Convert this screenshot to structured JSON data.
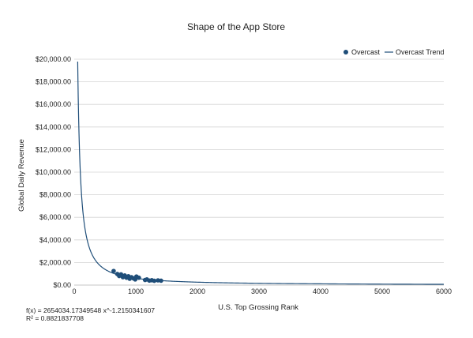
{
  "chart_data": {
    "type": "scatter",
    "title": "Shape of the App Store",
    "xlabel": "U.S. Top Grossing Rank",
    "ylabel": "Global Daily Revenue",
    "xlim": [
      0,
      6000
    ],
    "ylim": [
      0,
      20000
    ],
    "x_ticks": [
      "0",
      "1000",
      "2000",
      "3000",
      "4000",
      "5000",
      "6000"
    ],
    "y_ticks": [
      "$0.00",
      "$2,000.00",
      "$4,000.00",
      "$6,000.00",
      "$8,000.00",
      "$10,000.00",
      "$12,000.00",
      "$14,000.00",
      "$16,000.00",
      "$18,000.00",
      "$20,000.00"
    ],
    "grid": "horizontal",
    "legend_position": "top-right",
    "series": [
      {
        "name": "Overcast",
        "color": "#1f4e79",
        "points": [
          {
            "x": 640,
            "y": 1250
          },
          {
            "x": 700,
            "y": 980
          },
          {
            "x": 730,
            "y": 800
          },
          {
            "x": 760,
            "y": 950
          },
          {
            "x": 790,
            "y": 700
          },
          {
            "x": 820,
            "y": 850
          },
          {
            "x": 850,
            "y": 650
          },
          {
            "x": 880,
            "y": 780
          },
          {
            "x": 900,
            "y": 560
          },
          {
            "x": 930,
            "y": 700
          },
          {
            "x": 960,
            "y": 600
          },
          {
            "x": 990,
            "y": 500
          },
          {
            "x": 1010,
            "y": 760
          },
          {
            "x": 1050,
            "y": 650
          },
          {
            "x": 1150,
            "y": 450
          },
          {
            "x": 1180,
            "y": 500
          },
          {
            "x": 1220,
            "y": 400
          },
          {
            "x": 1260,
            "y": 430
          },
          {
            "x": 1300,
            "y": 380
          },
          {
            "x": 1360,
            "y": 420
          },
          {
            "x": 1410,
            "y": 390
          }
        ]
      }
    ],
    "trendline": {
      "name": "Overcast Trend",
      "color": "#1f4e79",
      "coefficient": 2654034.17349548,
      "exponent": -1.2150341607,
      "x_start": 50,
      "x_end": 6000
    },
    "equation_lines": [
      "f(x) = 2654034.17349548 x^-1.2150341607",
      "R² = 0.8821837708"
    ]
  }
}
